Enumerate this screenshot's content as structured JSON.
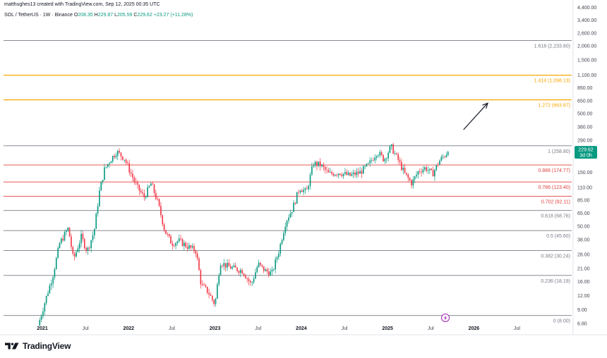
{
  "header": {
    "credit": "matthughes13 created with TradingView.com, Sep 12, 2025 00:35 UTC"
  },
  "symbol": {
    "name": "SOL / TetherUS · 1W · Binance",
    "o_label": "O",
    "o": "208.35",
    "h_label": "H",
    "h": "229.87",
    "l_label": "L",
    "l": "205.59",
    "c_label": "C",
    "c": "229.62",
    "change": "+23.27 (+11.28%)"
  },
  "price_tag": {
    "price": "229.62",
    "countdown": "3d 0h",
    "color": "#089981"
  },
  "logo_text": "TradingView",
  "colors": {
    "up": "#089981",
    "down": "#f23645",
    "fib_gray": "#787b86",
    "fib_orange": "#f7a600",
    "fib_red": "#e0403f"
  },
  "chart_data": {
    "type": "candlestick",
    "y_scale": "log",
    "ylim": [
      5.8,
      4700
    ],
    "yticks": [
      {
        "v": 4400,
        "label": "4,400.00"
      },
      {
        "v": 3400,
        "label": "3,400.00"
      },
      {
        "v": 2600,
        "label": "2,600.00"
      },
      {
        "v": 2000,
        "label": "2,000.00"
      },
      {
        "v": 1500,
        "label": "1,500.00"
      },
      {
        "v": 1100,
        "label": "1,100.00"
      },
      {
        "v": 850,
        "label": "850.00"
      },
      {
        "v": 650,
        "label": "650.00"
      },
      {
        "v": 500,
        "label": "500.00"
      },
      {
        "v": 380,
        "label": "380.00"
      },
      {
        "v": 290,
        "label": "290.00"
      },
      {
        "v": 220,
        "label": "220.00"
      },
      {
        "v": 150,
        "label": "150.00"
      },
      {
        "v": 110,
        "label": "110.00"
      },
      {
        "v": 85,
        "label": "85.00"
      },
      {
        "v": 65,
        "label": "65.00"
      },
      {
        "v": 50,
        "label": "50.00"
      },
      {
        "v": 38,
        "label": "38.00"
      },
      {
        "v": 28,
        "label": "28.00"
      },
      {
        "v": 21,
        "label": "21.00"
      },
      {
        "v": 16,
        "label": "16.00"
      },
      {
        "v": 12,
        "label": "12.00"
      },
      {
        "v": 9,
        "label": "9.00"
      },
      {
        "v": 6.8,
        "label": "6.80"
      }
    ],
    "xticks": [
      {
        "t": 2021.0,
        "label": "2021",
        "bold": true
      },
      {
        "t": 2021.5,
        "label": "Jul",
        "bold": false
      },
      {
        "t": 2022.0,
        "label": "2022",
        "bold": true
      },
      {
        "t": 2022.5,
        "label": "Jul",
        "bold": false
      },
      {
        "t": 2023.0,
        "label": "2023",
        "bold": true
      },
      {
        "t": 2023.5,
        "label": "Jul",
        "bold": false
      },
      {
        "t": 2024.0,
        "label": "2024",
        "bold": true
      },
      {
        "t": 2024.5,
        "label": "Jul",
        "bold": false
      },
      {
        "t": 2025.0,
        "label": "2025",
        "bold": true
      },
      {
        "t": 2025.5,
        "label": "Jul",
        "bold": false
      },
      {
        "t": 2026.0,
        "label": "2026",
        "bold": true
      },
      {
        "t": 2026.5,
        "label": "Jul",
        "bold": false
      }
    ],
    "xlim": [
      2020.55,
      2027.15
    ],
    "fib_levels": [
      {
        "level": "1.618",
        "value": 2233.8,
        "label": "1.618 (2,233.80)",
        "color": "#787b86"
      },
      {
        "level": "1.414",
        "value": 1098.13,
        "label": "1.414 (1,098.13)",
        "color": "#f7a600"
      },
      {
        "level": "1.272",
        "value": 663.87,
        "label": "1.272 (663.87)",
        "color": "#f7a600"
      },
      {
        "level": "1",
        "value": 258.8,
        "label": "1 (258.80)",
        "color": "#787b86"
      },
      {
        "level": "0.886",
        "value": 174.77,
        "label": "0.886 (174.77)",
        "color": "#e0403f"
      },
      {
        "level": "0.786",
        "value": 123.4,
        "label": "0.786 (123.40)",
        "color": "#e0403f"
      },
      {
        "level": "0.702",
        "value": 92.11,
        "label": "0.702 (92.11)",
        "color": "#e0403f"
      },
      {
        "level": "0.618",
        "value": 68.76,
        "label": "0.618 (68.76)",
        "color": "#787b86"
      },
      {
        "level": "0.5",
        "value": 45.6,
        "label": "0.5 (45.60)",
        "color": "#787b86"
      },
      {
        "level": "0.382",
        "value": 30.24,
        "label": "0.382 (30.24)",
        "color": "#787b86"
      },
      {
        "level": "0.236",
        "value": 18.19,
        "label": "0.236 (18.19)",
        "color": "#787b86"
      },
      {
        "level": "0",
        "value": 8.0,
        "label": "0 (8.00)",
        "color": "#787b86"
      }
    ],
    "arrow": {
      "from": {
        "t": 2025.88,
        "v": 360
      },
      "to": {
        "t": 2026.16,
        "v": 620
      }
    },
    "price_path": [
      [
        2020.95,
        6.5
      ],
      [
        2021.05,
        12
      ],
      [
        2021.12,
        18
      ],
      [
        2021.2,
        35
      ],
      [
        2021.3,
        48
      ],
      [
        2021.36,
        25
      ],
      [
        2021.45,
        40
      ],
      [
        2021.52,
        30
      ],
      [
        2021.6,
        45
      ],
      [
        2021.66,
        100
      ],
      [
        2021.72,
        160
      ],
      [
        2021.78,
        190
      ],
      [
        2021.86,
        230
      ],
      [
        2021.95,
        200
      ],
      [
        2022.02,
        150
      ],
      [
        2022.1,
        110
      ],
      [
        2022.18,
        90
      ],
      [
        2022.26,
        120
      ],
      [
        2022.34,
        80
      ],
      [
        2022.42,
        45
      ],
      [
        2022.5,
        35
      ],
      [
        2022.58,
        37
      ],
      [
        2022.68,
        33
      ],
      [
        2022.78,
        30
      ],
      [
        2022.84,
        15
      ],
      [
        2022.92,
        13
      ],
      [
        2023.0,
        10
      ],
      [
        2023.06,
        24
      ],
      [
        2023.14,
        22
      ],
      [
        2023.22,
        21
      ],
      [
        2023.32,
        20
      ],
      [
        2023.42,
        15
      ],
      [
        2023.5,
        23
      ],
      [
        2023.58,
        20
      ],
      [
        2023.66,
        19
      ],
      [
        2023.74,
        30
      ],
      [
        2023.82,
        55
      ],
      [
        2023.9,
        72
      ],
      [
        2023.98,
        110
      ],
      [
        2024.06,
        100
      ],
      [
        2024.14,
        180
      ],
      [
        2024.22,
        175
      ],
      [
        2024.32,
        145
      ],
      [
        2024.44,
        150
      ],
      [
        2024.56,
        140
      ],
      [
        2024.68,
        150
      ],
      [
        2024.78,
        175
      ],
      [
        2024.88,
        230
      ],
      [
        2024.96,
        195
      ],
      [
        2025.04,
        255
      ],
      [
        2025.12,
        195
      ],
      [
        2025.2,
        145
      ],
      [
        2025.28,
        120
      ],
      [
        2025.36,
        155
      ],
      [
        2025.44,
        165
      ],
      [
        2025.52,
        145
      ],
      [
        2025.6,
        190
      ],
      [
        2025.7,
        229
      ]
    ]
  }
}
